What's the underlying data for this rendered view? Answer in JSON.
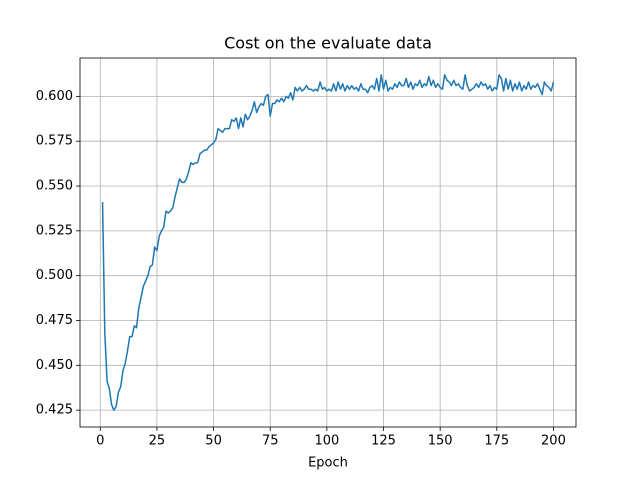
{
  "chart_data": {
    "type": "line",
    "title": "Cost on the evaluate data",
    "x_label": "Epoch",
    "x": [
      1,
      2,
      3,
      4,
      5,
      6,
      7,
      8,
      9,
      10,
      11,
      12,
      13,
      14,
      15,
      16,
      17,
      18,
      19,
      20,
      21,
      22,
      23,
      24,
      25,
      26,
      27,
      28,
      29,
      30,
      31,
      32,
      33,
      34,
      35,
      36,
      37,
      38,
      39,
      40,
      41,
      42,
      43,
      44,
      45,
      46,
      47,
      48,
      49,
      50,
      51,
      52,
      53,
      54,
      55,
      56,
      57,
      58,
      59,
      60,
      61,
      62,
      63,
      64,
      65,
      66,
      67,
      68,
      69,
      70,
      71,
      72,
      73,
      74,
      75,
      76,
      77,
      78,
      79,
      80,
      81,
      82,
      83,
      84,
      85,
      86,
      87,
      88,
      89,
      90,
      91,
      92,
      93,
      94,
      95,
      96,
      97,
      98,
      99,
      100,
      101,
      102,
      103,
      104,
      105,
      106,
      107,
      108,
      109,
      110,
      111,
      112,
      113,
      114,
      115,
      116,
      117,
      118,
      119,
      120,
      121,
      122,
      123,
      124,
      125,
      126,
      127,
      128,
      129,
      130,
      131,
      132,
      133,
      134,
      135,
      136,
      137,
      138,
      139,
      140,
      141,
      142,
      143,
      144,
      145,
      146,
      147,
      148,
      149,
      150,
      151,
      152,
      153,
      154,
      155,
      156,
      157,
      158,
      159,
      160,
      161,
      162,
      163,
      164,
      165,
      166,
      167,
      168,
      169,
      170,
      171,
      172,
      173,
      174,
      175,
      176,
      177,
      178,
      179,
      180,
      181,
      182,
      183,
      184,
      185,
      186,
      187,
      188,
      189,
      190,
      191,
      192,
      193,
      194,
      195,
      196,
      197,
      198,
      199,
      200
    ],
    "values": [
      0.541,
      0.468,
      0.441,
      0.437,
      0.428,
      0.425,
      0.427,
      0.435,
      0.438,
      0.447,
      0.451,
      0.458,
      0.466,
      0.466,
      0.472,
      0.471,
      0.482,
      0.488,
      0.494,
      0.497,
      0.5,
      0.505,
      0.506,
      0.516,
      0.514,
      0.522,
      0.525,
      0.527,
      0.536,
      0.535,
      0.536,
      0.538,
      0.544,
      0.549,
      0.554,
      0.552,
      0.552,
      0.554,
      0.558,
      0.563,
      0.562,
      0.563,
      0.563,
      0.568,
      0.569,
      0.57,
      0.57,
      0.572,
      0.573,
      0.574,
      0.576,
      0.582,
      0.581,
      0.58,
      0.582,
      0.582,
      0.582,
      0.587,
      0.586,
      0.588,
      0.582,
      0.588,
      0.583,
      0.59,
      0.587,
      0.589,
      0.592,
      0.597,
      0.591,
      0.594,
      0.596,
      0.595,
      0.6,
      0.601,
      0.589,
      0.596,
      0.596,
      0.598,
      0.597,
      0.599,
      0.597,
      0.6,
      0.599,
      0.602,
      0.598,
      0.605,
      0.603,
      0.605,
      0.603,
      0.604,
      0.606,
      0.604,
      0.604,
      0.603,
      0.604,
      0.603,
      0.608,
      0.604,
      0.605,
      0.603,
      0.604,
      0.603,
      0.607,
      0.603,
      0.608,
      0.604,
      0.607,
      0.603,
      0.606,
      0.604,
      0.606,
      0.604,
      0.605,
      0.603,
      0.607,
      0.604,
      0.604,
      0.602,
      0.605,
      0.606,
      0.604,
      0.61,
      0.603,
      0.612,
      0.604,
      0.609,
      0.603,
      0.605,
      0.604,
      0.607,
      0.605,
      0.608,
      0.606,
      0.606,
      0.61,
      0.605,
      0.608,
      0.604,
      0.607,
      0.606,
      0.609,
      0.605,
      0.607,
      0.606,
      0.611,
      0.606,
      0.609,
      0.605,
      0.607,
      0.605,
      0.604,
      0.612,
      0.609,
      0.608,
      0.606,
      0.609,
      0.606,
      0.607,
      0.605,
      0.604,
      0.612,
      0.606,
      0.603,
      0.604,
      0.605,
      0.607,
      0.605,
      0.608,
      0.606,
      0.607,
      0.604,
      0.606,
      0.603,
      0.605,
      0.604,
      0.612,
      0.61,
      0.603,
      0.61,
      0.604,
      0.609,
      0.603,
      0.607,
      0.604,
      0.608,
      0.603,
      0.606,
      0.604,
      0.608,
      0.604,
      0.606,
      0.605,
      0.607,
      0.604,
      0.601,
      0.608,
      0.606,
      0.605,
      0.603,
      0.608
    ],
    "color": "#1f77b4",
    "xlim": [
      -8.95,
      209.95
    ],
    "xticks": [
      0,
      25,
      50,
      75,
      100,
      125,
      150,
      175,
      200
    ],
    "ylim": [
      0.4156,
      0.6214
    ],
    "yticks": [
      0.425,
      {
        "value": 0.45,
        "label": "0.450"
      },
      0.475,
      {
        "value": 0.5,
        "label": "0.500"
      },
      0.525,
      {
        "value": 0.55,
        "label": "0.550"
      },
      0.575,
      {
        "value": 0.6,
        "label": "0.600"
      }
    ],
    "grid": true
  }
}
